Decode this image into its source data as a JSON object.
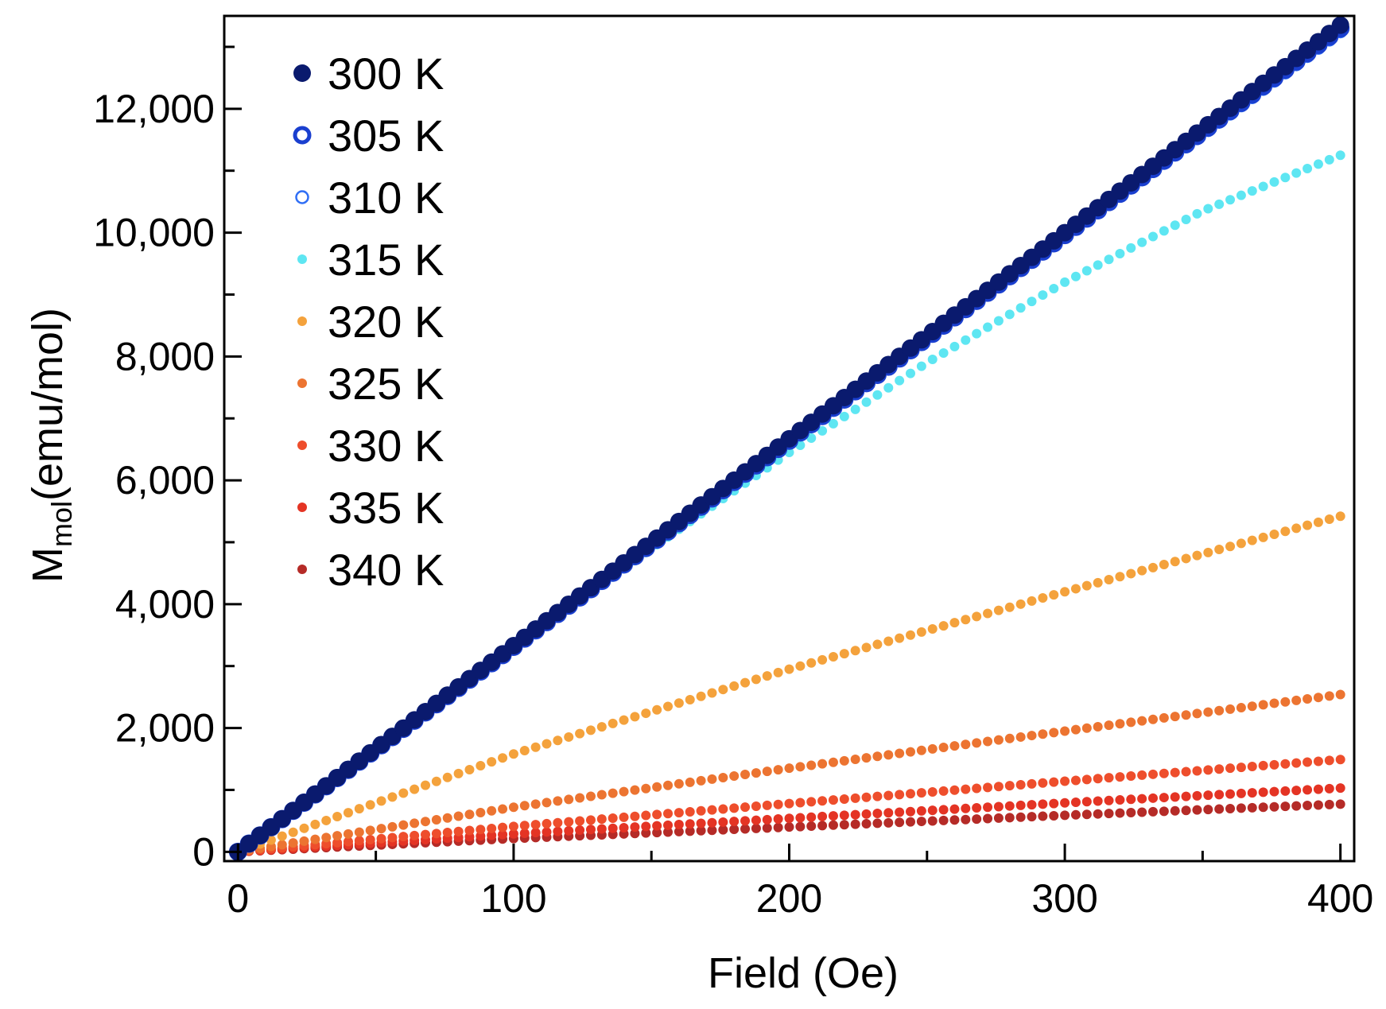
{
  "chart_data": {
    "type": "scatter",
    "title": "",
    "xlabel": "Field (Oe)",
    "ylabel": {
      "main": "M",
      "subscript": "mol",
      "unit": "(emu/mol)"
    },
    "xlim": [
      -5,
      405
    ],
    "ylim": [
      -150,
      13500
    ],
    "x_ticks": [
      0,
      100,
      200,
      300,
      400
    ],
    "x_tick_labels": [
      "0",
      "100",
      "200",
      "300",
      "400"
    ],
    "y_ticks": [
      0,
      2000,
      4000,
      6000,
      8000,
      10000,
      12000
    ],
    "y_tick_labels": [
      "0",
      "2,000",
      "4,000",
      "6,000",
      "8,000",
      "10,000",
      "12,000"
    ],
    "grid": false,
    "legend_position": "top-left",
    "x_step": 4,
    "series": [
      {
        "name": "300 K",
        "color": "#0a1a6e",
        "marker": "filled-large",
        "x": [
          0,
          100,
          200,
          300,
          400
        ],
        "y": [
          0,
          3330,
          6670,
          10000,
          13350
        ]
      },
      {
        "name": "305 K",
        "color": "#1a3fcf",
        "marker": "ring-thick",
        "x": [
          0,
          100,
          200,
          300,
          400
        ],
        "y": [
          0,
          3310,
          6640,
          9960,
          13300
        ]
      },
      {
        "name": "310 K",
        "color": "#2f6ef5",
        "marker": "ring-thin",
        "x": [
          0,
          100,
          200,
          300,
          400
        ],
        "y": [
          0,
          3300,
          6620,
          9930,
          13250
        ]
      },
      {
        "name": "315 K",
        "color": "#5ee6f2",
        "marker": "filled-small",
        "x": [
          0,
          50,
          100,
          150,
          200,
          250,
          300,
          350,
          400
        ],
        "y": [
          0,
          1640,
          3250,
          4900,
          6450,
          7900,
          9200,
          10350,
          11250
        ]
      },
      {
        "name": "320 K",
        "color": "#f4a23c",
        "marker": "filled-small",
        "x": [
          0,
          100,
          200,
          300,
          400
        ],
        "y": [
          0,
          1580,
          2950,
          4200,
          5420
        ]
      },
      {
        "name": "325 K",
        "color": "#ec7431",
        "marker": "filled-small",
        "x": [
          0,
          100,
          200,
          300,
          400
        ],
        "y": [
          0,
          720,
          1350,
          1950,
          2540
        ]
      },
      {
        "name": "330 K",
        "color": "#ee4e2c",
        "marker": "filled-small",
        "x": [
          0,
          100,
          200,
          300,
          400
        ],
        "y": [
          0,
          410,
          780,
          1140,
          1490
        ]
      },
      {
        "name": "335 K",
        "color": "#e43424",
        "marker": "filled-small",
        "x": [
          0,
          100,
          200,
          300,
          400
        ],
        "y": [
          0,
          290,
          540,
          790,
          1030
        ]
      },
      {
        "name": "340 K",
        "color": "#b52b27",
        "marker": "filled-small",
        "x": [
          0,
          100,
          200,
          300,
          400
        ],
        "y": [
          0,
          215,
          400,
          590,
          770
        ]
      }
    ]
  }
}
